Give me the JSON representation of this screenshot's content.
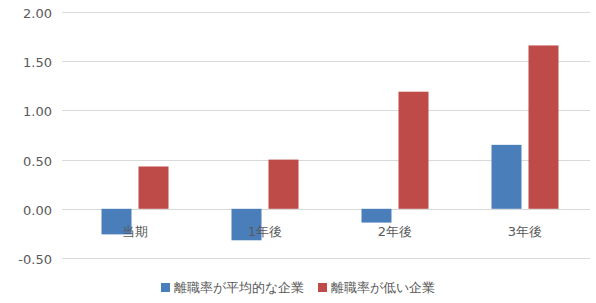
{
  "chart_data": {
    "type": "bar",
    "categories": [
      "当期",
      "1年後",
      "2年後",
      "3年後"
    ],
    "series": [
      {
        "name": "離職率が平均的な企業",
        "color": "#4a7ebb",
        "values": [
          -0.26,
          -0.32,
          -0.14,
          0.65
        ]
      },
      {
        "name": "離職率が低い企業",
        "color": "#be4b48",
        "values": [
          0.43,
          0.5,
          1.19,
          1.66
        ]
      }
    ],
    "ylim": [
      -0.5,
      2.0
    ],
    "yticks": [
      {
        "value": -0.5,
        "label": "-0.50"
      },
      {
        "value": 0,
        "label": "0.00"
      },
      {
        "value": 0.5,
        "label": "0.50"
      },
      {
        "value": 1.0,
        "label": "1.00"
      },
      {
        "value": 1.5,
        "label": "1.50"
      },
      {
        "value": 2.0,
        "label": "2.00"
      }
    ],
    "grid": true,
    "legend": "bottom"
  }
}
